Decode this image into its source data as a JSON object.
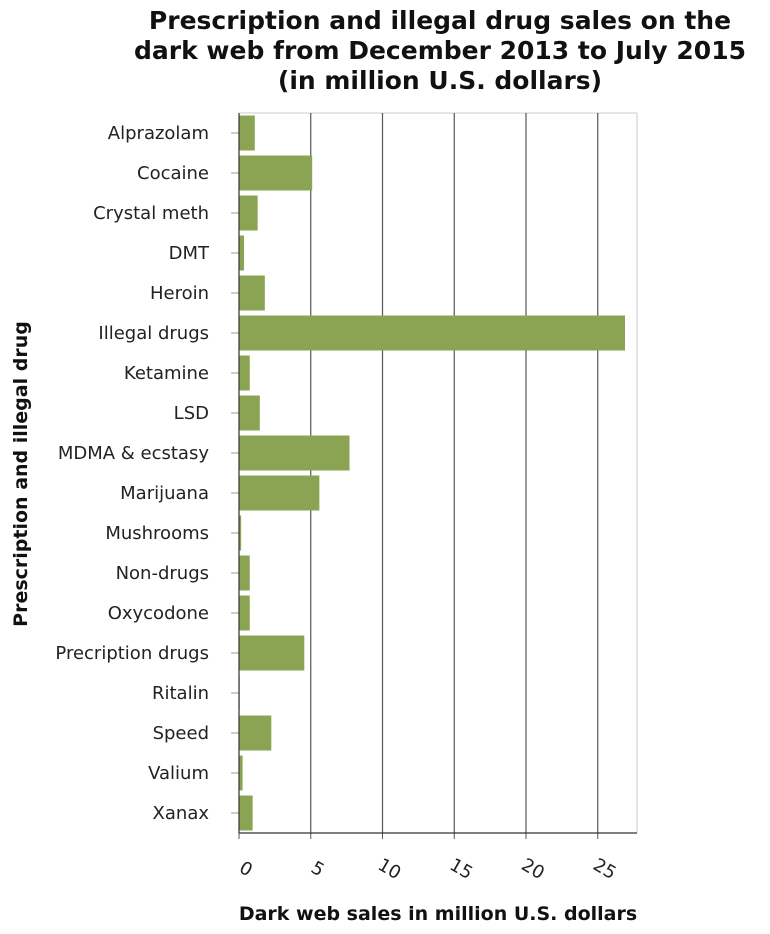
{
  "chart_data": {
    "type": "bar",
    "orientation": "horizontal",
    "title_lines": [
      "Prescription and illegal drug sales on the",
      "dark web from December 2013 to July 2015",
      "(in million U.S. dollars)"
    ],
    "xlabel": "Dark web sales in million U.S. dollars",
    "ylabel": "Prescription and illegal drug",
    "categories": [
      "Alprazolam",
      "Cocaine",
      "Crystal meth",
      "DMT",
      "Heroin",
      "Illegal drugs",
      "Ketamine",
      "LSD",
      "MDMA & ecstasy",
      "Marijuana",
      "Mushrooms",
      "Non-drugs",
      "Oxycodone",
      "Precription drugs",
      "Ritalin",
      "Speed",
      "Valium",
      "Xanax"
    ],
    "values": [
      1.1,
      5.1,
      1.3,
      0.35,
      1.8,
      26.9,
      0.75,
      1.45,
      7.7,
      5.6,
      0.15,
      0.75,
      0.75,
      4.55,
      0.05,
      2.25,
      0.25,
      0.95
    ],
    "xlim": [
      0,
      28
    ],
    "xticks": [
      0,
      5,
      10,
      15,
      20,
      25
    ],
    "grid": "vertical",
    "bar_color": "#8aa454",
    "grid_color": "#555555",
    "legend": "none"
  }
}
